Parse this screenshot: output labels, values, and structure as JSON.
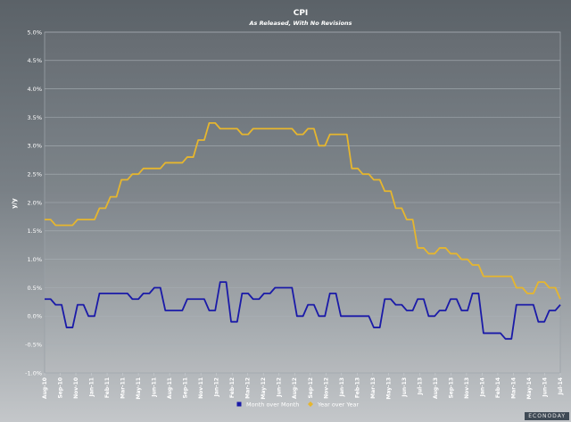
{
  "chart_data": {
    "type": "line",
    "title": "CPI",
    "subtitle": "As Released, With No Revisions",
    "ylabel": "y/y",
    "xlabel": "",
    "ylim": [
      -1.0,
      5.0
    ],
    "yticks": [
      "-1.0%",
      "-0.5%",
      "0.0%",
      "0.5%",
      "1.0%",
      "1.5%",
      "2.0%",
      "2.5%",
      "3.0%",
      "3.5%",
      "4.0%",
      "4.5%",
      "5.0%"
    ],
    "ytick_values": [
      -1.0,
      -0.5,
      0.0,
      0.5,
      1.0,
      1.5,
      2.0,
      2.5,
      3.0,
      3.5,
      4.0,
      4.5,
      5.0
    ],
    "xtick_labels": [
      "Aug-10",
      "Sep-10",
      "Nov-10",
      "Jan-11",
      "Feb-11",
      "Mar-11",
      "May-11",
      "Jun-11",
      "Aug-11",
      "Sep-11",
      "Nov-11",
      "Jan-12",
      "Feb-12",
      "Mar-12",
      "May-12",
      "Jun-12",
      "Aug-12",
      "Sep-12",
      "Nov-12",
      "Jan-13",
      "Feb-13",
      "Mar-13",
      "May-13",
      "Jun-13",
      "Jul-13",
      "Aug-13",
      "Sep-13",
      "Nov-13",
      "Jan-14",
      "Feb-14",
      "Mar-14",
      "May-14",
      "Jun-14",
      "Jul-14"
    ],
    "x": [
      "Aug-10",
      "Sep-10",
      "Oct-10",
      "Nov-10",
      "Dec-10",
      "Jan-11",
      "Feb-11",
      "Mar-11",
      "Apr-11",
      "May-11",
      "Jun-11",
      "Jul-11",
      "Aug-11",
      "Sep-11",
      "Oct-11",
      "Nov-11",
      "Dec-11",
      "Jan-12",
      "Feb-12",
      "Mar-12",
      "Apr-12",
      "May-12",
      "Jun-12",
      "Jul-12",
      "Aug-12",
      "Sep-12",
      "Oct-12",
      "Nov-12",
      "Dec-12",
      "Jan-13",
      "Feb-13",
      "Mar-13",
      "Apr-13",
      "May-13",
      "Jun-13",
      "Jul-13",
      "Aug-13",
      "Sep-13",
      "Oct-13",
      "Nov-13",
      "Dec-13",
      "Jan-14",
      "Feb-14",
      "Mar-14",
      "Apr-14",
      "May-14",
      "Jun-14",
      "Jul-14"
    ],
    "series": [
      {
        "name": "Month over Month",
        "color": "#1a1aa8",
        "marker": "square",
        "values": [
          0.3,
          0.2,
          -0.2,
          0.2,
          0.0,
          0.4,
          0.4,
          0.4,
          0.3,
          0.4,
          0.5,
          0.1,
          0.1,
          0.3,
          0.3,
          0.1,
          0.6,
          -0.1,
          0.4,
          0.3,
          0.4,
          0.5,
          0.5,
          0.0,
          0.2,
          0.0,
          0.4,
          0.0,
          0.0,
          0.0,
          -0.2,
          0.3,
          0.2,
          0.1,
          0.3,
          0.0,
          0.1,
          0.3,
          0.1,
          0.4,
          -0.3,
          -0.3,
          -0.4,
          0.2,
          0.2,
          -0.1,
          0.1,
          0.2
        ]
      },
      {
        "name": "Year over Year",
        "color": "#e6b62e",
        "marker": "diamond",
        "values": [
          1.7,
          1.6,
          1.6,
          1.7,
          1.7,
          1.9,
          2.1,
          2.4,
          2.5,
          2.6,
          2.6,
          2.7,
          2.7,
          2.8,
          3.1,
          3.4,
          3.3,
          3.3,
          3.2,
          3.3,
          3.3,
          3.3,
          3.3,
          3.2,
          3.3,
          3.0,
          3.2,
          3.2,
          2.6,
          2.5,
          2.4,
          2.2,
          1.9,
          1.7,
          1.2,
          1.1,
          1.2,
          1.1,
          1.0,
          0.9,
          0.7,
          0.7,
          0.7,
          0.5,
          0.4,
          0.6,
          0.5,
          0.3
        ]
      }
    ],
    "legend": [
      "Month over Month",
      "Year over Year"
    ],
    "legend_position": "bottom-center",
    "grid": true
  },
  "watermark": "ECONODAY"
}
